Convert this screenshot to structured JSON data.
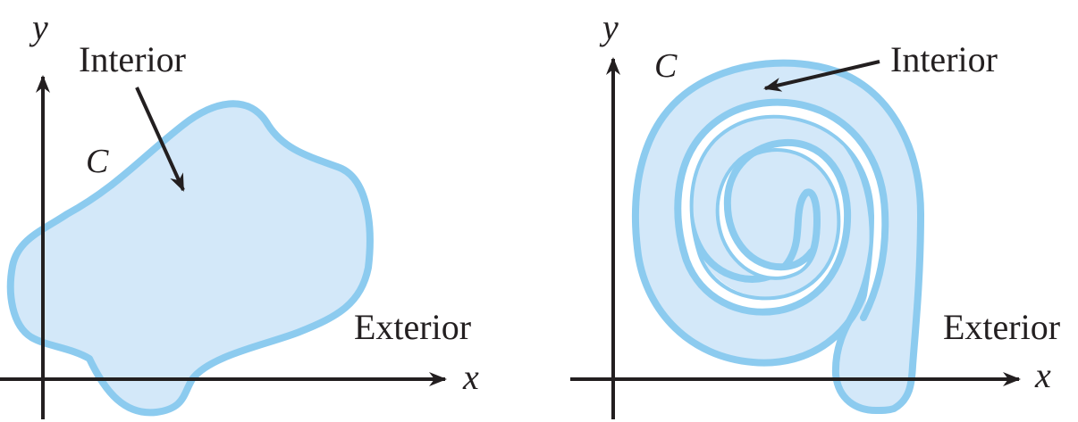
{
  "colors": {
    "curve_stroke": "#8ccbef",
    "region_fill": "#d3e8f9",
    "axis": "#231f20",
    "text": "#231f20",
    "background": "#ffffff"
  },
  "panels": [
    {
      "name": "simple-region",
      "axis_x_label": "x",
      "axis_y_label": "y",
      "curve_label": "C",
      "interior_label": "Interior",
      "exterior_label": "Exterior"
    },
    {
      "name": "spiral-region",
      "axis_x_label": "x",
      "axis_y_label": "y",
      "curve_label": "C",
      "interior_label": "Interior",
      "exterior_label": "Exterior"
    }
  ]
}
